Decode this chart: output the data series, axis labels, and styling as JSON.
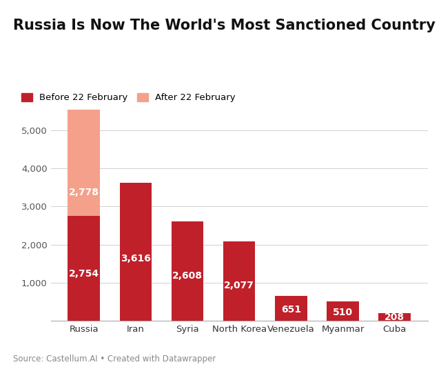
{
  "title": "Russia Is Now The World's Most Sanctioned Country",
  "categories": [
    "Russia",
    "Iran",
    "Syria",
    "North Korea",
    "Venezuela",
    "Myanmar",
    "Cuba"
  ],
  "before_values": [
    2754,
    3616,
    2608,
    2077,
    651,
    510,
    208
  ],
  "after_values": [
    2778,
    0,
    0,
    0,
    0,
    0,
    0
  ],
  "bar_color_dark": "#c0202a",
  "bar_color_light": "#f4a08a",
  "legend_label_dark": "Before 22 February",
  "legend_label_light": "After 22 February",
  "source_text": "Source: Castellum.AI • Created with Datawrapper",
  "ylim": [
    0,
    5700
  ],
  "yticks": [
    1000,
    2000,
    3000,
    4000,
    5000
  ],
  "background_color": "#ffffff",
  "title_fontsize": 15,
  "label_fontsize": 10,
  "tick_fontsize": 9.5,
  "source_fontsize": 8.5
}
